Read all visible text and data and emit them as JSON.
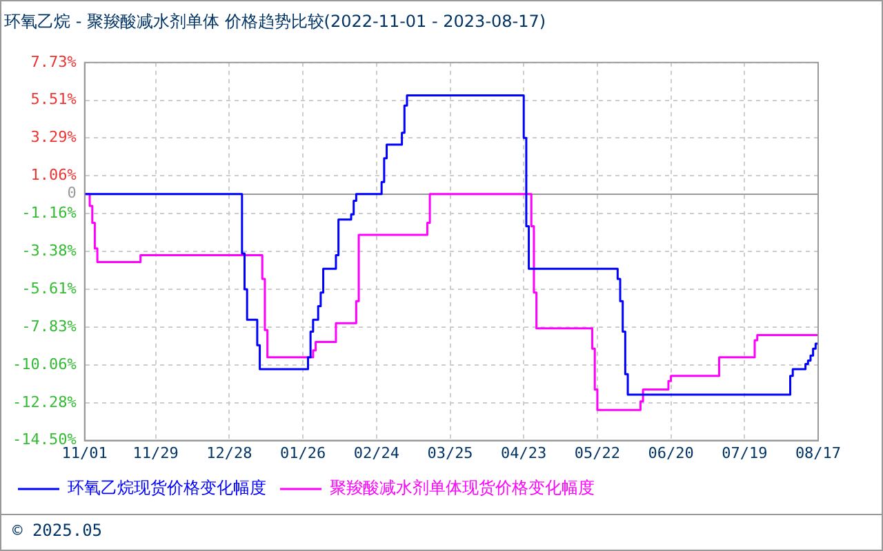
{
  "chart_data": {
    "type": "step",
    "title": "环氧乙烷 - 聚羧酸减水剂单体 价格趋势比较(2022-11-01 - 2023-08-17)",
    "xlim": [
      "2022-11-01",
      "2023-08-17"
    ],
    "xticks": [
      {
        "value": "2022-11-01",
        "label": "11/01"
      },
      {
        "value": "2022-11-29",
        "label": "11/29"
      },
      {
        "value": "2022-12-28",
        "label": "12/28"
      },
      {
        "value": "2023-01-26",
        "label": "01/26"
      },
      {
        "value": "2023-02-24",
        "label": "02/24"
      },
      {
        "value": "2023-03-25",
        "label": "03/25"
      },
      {
        "value": "2023-04-23",
        "label": "04/23"
      },
      {
        "value": "2023-05-22",
        "label": "05/22"
      },
      {
        "value": "2023-06-20",
        "label": "06/20"
      },
      {
        "value": "2023-07-19",
        "label": "07/19"
      },
      {
        "value": "2023-08-17",
        "label": "08/17"
      }
    ],
    "ylim": [
      -14.5,
      7.73
    ],
    "yticks": [
      {
        "value": -14.5,
        "label": "-14.50%"
      },
      {
        "value": -12.28,
        "label": "-12.28%"
      },
      {
        "value": -10.06,
        "label": "-10.06%"
      },
      {
        "value": -7.83,
        "label": "-7.83%"
      },
      {
        "value": -5.61,
        "label": "-5.61%"
      },
      {
        "value": -3.38,
        "label": "-3.38%"
      },
      {
        "value": -1.16,
        "label": "-1.16%"
      },
      {
        "value": 0,
        "label": "0"
      },
      {
        "value": 1.06,
        "label": "1.06%"
      },
      {
        "value": 3.29,
        "label": "3.29%"
      },
      {
        "value": 5.51,
        "label": "5.51%"
      },
      {
        "value": 7.73,
        "label": "7.73%"
      }
    ],
    "grid": true,
    "legend": "bottom",
    "line_style": "solid",
    "marker": "none",
    "series": [
      {
        "name": "环氧乙烷现货价格变化幅度",
        "color": "#0000ff",
        "x": [
          "2022-11-01",
          "2023-01-02",
          "2023-01-03",
          "2023-01-04",
          "2023-01-08",
          "2023-01-09",
          "2023-01-28",
          "2023-01-29",
          "2023-01-30",
          "2023-02-01",
          "2023-02-02",
          "2023-02-03",
          "2023-02-08",
          "2023-02-09",
          "2023-02-14",
          "2023-02-15",
          "2023-02-16",
          "2023-02-26",
          "2023-02-27",
          "2023-02-28",
          "2023-03-06",
          "2023-03-07",
          "2023-03-08",
          "2023-04-23",
          "2023-04-24",
          "2023-04-25",
          "2023-05-30",
          "2023-05-31",
          "2023-06-01",
          "2023-06-02",
          "2023-06-03",
          "2023-08-06",
          "2023-08-07",
          "2023-08-12",
          "2023-08-13",
          "2023-08-14",
          "2023-08-15",
          "2023-08-16",
          "2023-08-17"
        ],
        "values": [
          0,
          -3.5,
          -5.6,
          -7.4,
          -8.9,
          -10.3,
          -9.6,
          -8.1,
          -7.4,
          -6.6,
          -5.8,
          -4.4,
          -3.6,
          -1.5,
          -1.2,
          -0.4,
          0,
          0.7,
          2.1,
          2.9,
          3.6,
          5.2,
          5.8,
          3.3,
          -1.9,
          -4.4,
          -5.0,
          -6.3,
          -8.1,
          -10.6,
          -11.8,
          -10.7,
          -10.3,
          -10.0,
          -9.8,
          -9.5,
          -9.1,
          -8.8,
          -8.8
        ]
      },
      {
        "name": "聚羧酸减水剂单体现货价格变化幅度",
        "color": "#ff00ff",
        "x": [
          "2022-11-01",
          "2022-11-03",
          "2022-11-04",
          "2022-11-05",
          "2022-11-06",
          "2022-11-23",
          "2023-01-10",
          "2023-01-11",
          "2023-01-12",
          "2023-01-30",
          "2023-01-31",
          "2023-02-08",
          "2023-02-16",
          "2023-02-17",
          "2023-03-16",
          "2023-03-17",
          "2023-04-26",
          "2023-04-27",
          "2023-04-28",
          "2023-05-20",
          "2023-05-21",
          "2023-05-22",
          "2023-06-08",
          "2023-06-09",
          "2023-06-19",
          "2023-06-20",
          "2023-07-09",
          "2023-07-23",
          "2023-07-24",
          "2023-08-17"
        ],
        "values": [
          0,
          -0.7,
          -1.7,
          -3.2,
          -4.0,
          -3.6,
          -5.0,
          -8.0,
          -9.6,
          -9.2,
          -8.7,
          -7.6,
          -6.3,
          -2.4,
          -1.7,
          0,
          -1.9,
          -5.8,
          -7.9,
          -9.1,
          -11.5,
          -12.7,
          -12.2,
          -11.5,
          -11.0,
          -10.7,
          -9.6,
          -8.6,
          -8.3,
          -8.3
        ]
      }
    ],
    "annotations": [
      "© 2025.05"
    ]
  }
}
